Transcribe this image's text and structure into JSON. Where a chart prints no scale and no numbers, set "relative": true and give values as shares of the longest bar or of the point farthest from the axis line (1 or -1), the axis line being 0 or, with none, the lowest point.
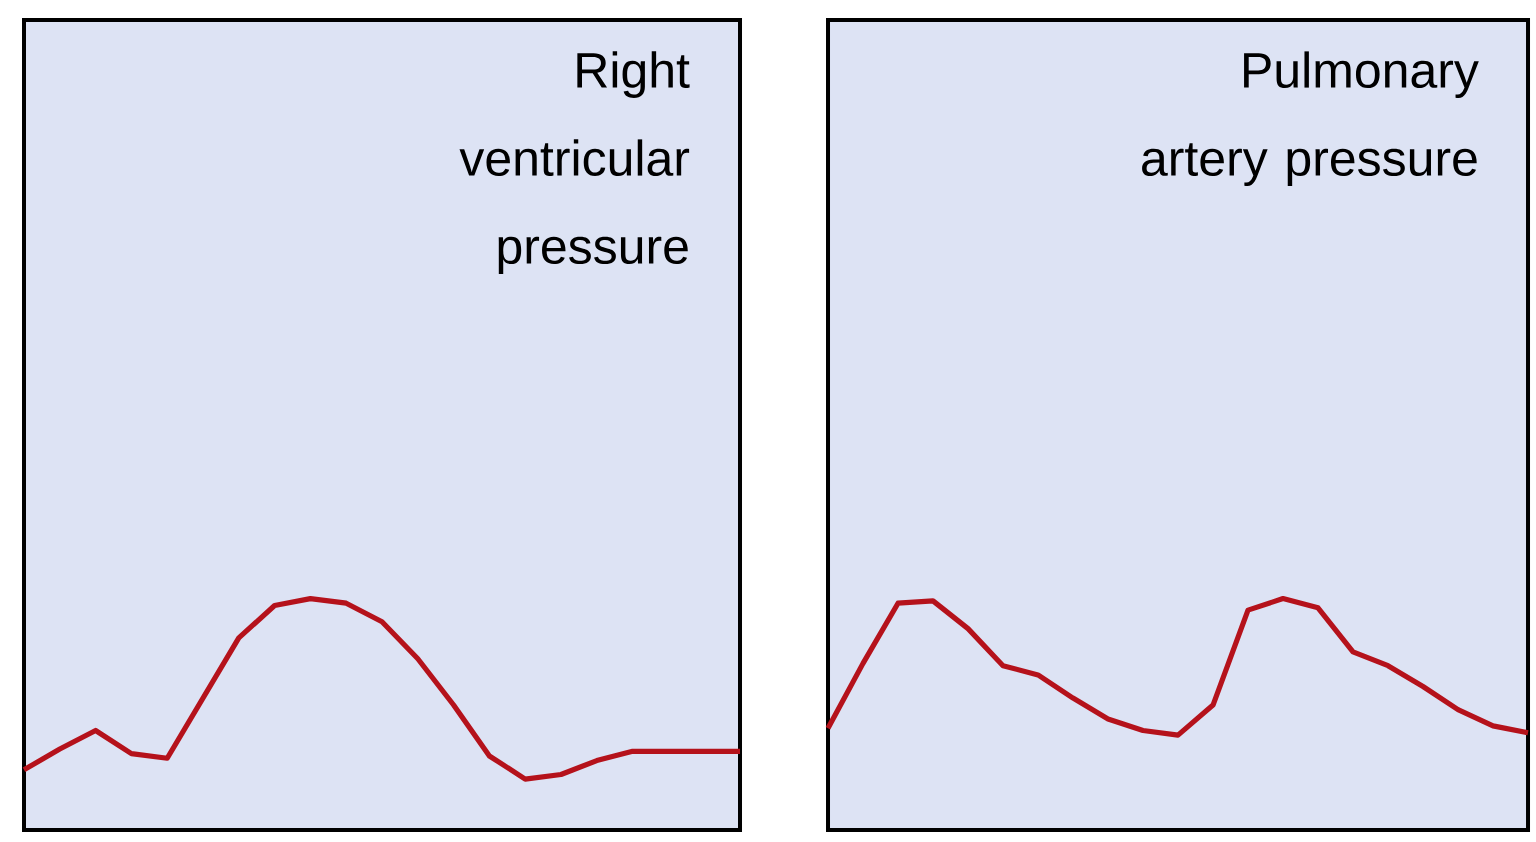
{
  "chart_data": [
    {
      "type": "line",
      "title": "Right ventricular pressure",
      "relative": true,
      "categories": [
        null,
        null,
        null,
        null,
        null,
        null,
        null,
        null,
        null,
        null,
        null,
        null,
        null,
        null,
        null,
        null,
        null,
        null,
        null,
        null,
        null
      ],
      "series": [
        {
          "color": "#b5121b",
          "values": [
            0.26,
            0.35,
            0.43,
            0.33,
            0.31,
            0.57,
            0.83,
            0.97,
            1,
            0.98,
            0.9,
            0.74,
            0.54,
            0.32,
            0.22,
            0.24,
            0.3,
            0.34,
            0.34,
            0.34,
            0.34
          ]
        }
      ]
    },
    {
      "type": "line",
      "title": "Pulmonary artery pressure",
      "relative": true,
      "categories": [
        null,
        null,
        null,
        null,
        null,
        null,
        null,
        null,
        null,
        null,
        null,
        null,
        null,
        null,
        null,
        null,
        null,
        null,
        null,
        null,
        null
      ],
      "series": [
        {
          "color": "#b5121b",
          "values": [
            0.44,
            0.72,
            0.98,
            0.99,
            0.87,
            0.71,
            0.67,
            0.57,
            0.48,
            0.43,
            0.41,
            0.54,
            0.95,
            1,
            0.96,
            0.77,
            0.71,
            0.62,
            0.52,
            0.45,
            0.42
          ]
        }
      ]
    }
  ]
}
